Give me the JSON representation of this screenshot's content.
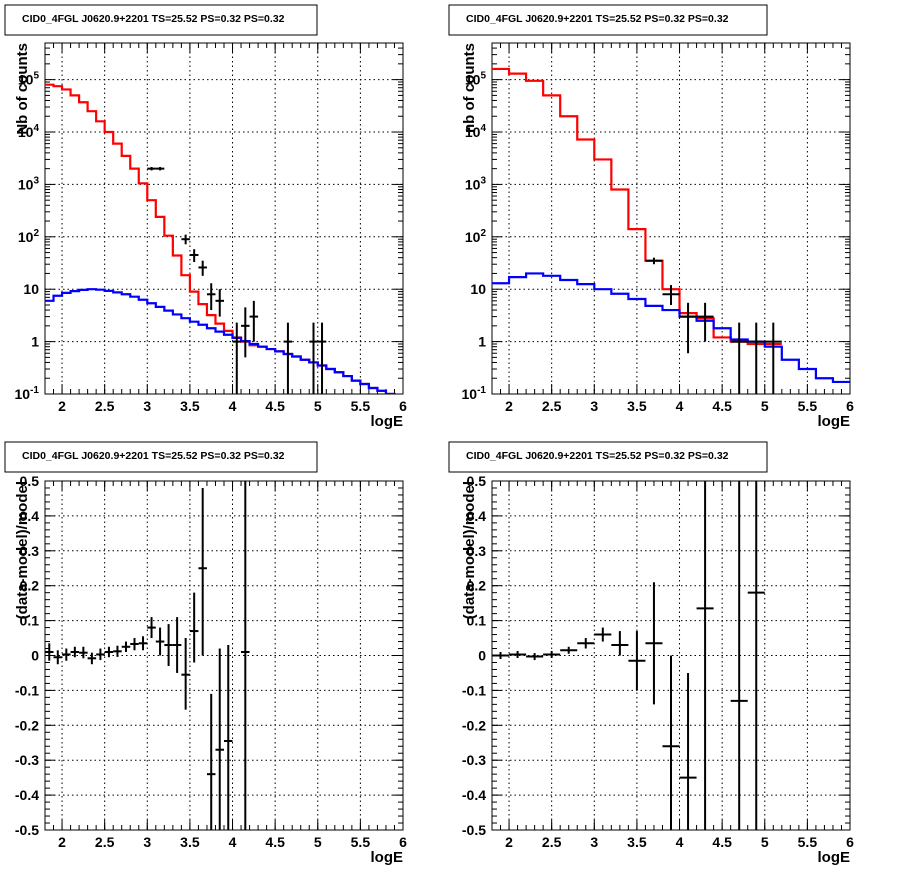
{
  "chart_data": [
    {
      "type": "line",
      "title": "CID0_4FGL J0620.9+2201 TS=25.52 PS=0.32 PS=0.32",
      "xlabel": "logE",
      "ylabel": "Nb of counts",
      "xlim": [
        1.8,
        6.0
      ],
      "ylim": [
        0.1,
        500000
      ],
      "yscale": "log",
      "grid": true,
      "xticks": [
        "2",
        "2.5",
        "3",
        "3.5",
        "4",
        "4.5",
        "5",
        "5.5",
        "6"
      ],
      "yticks": [
        "10^{-1}",
        "1",
        "10",
        "10^{2}",
        "10^{3}",
        "10^{4}",
        "10^{5}"
      ],
      "series": [
        {
          "color": "#ff0000",
          "style": "step",
          "edges": [
            1.8,
            1.9,
            2.0,
            2.1,
            2.2,
            2.3,
            2.4,
            2.5,
            2.6,
            2.7,
            2.8,
            2.9,
            3.0,
            3.1,
            3.2,
            3.3,
            3.4,
            3.5,
            3.6,
            3.7,
            3.8,
            3.9,
            4.0,
            4.1,
            4.2,
            4.3,
            4.4,
            4.5,
            4.6,
            4.7,
            4.8,
            4.9,
            5.0,
            5.1,
            5.2,
            5.3,
            5.4,
            5.5,
            5.6,
            5.7,
            5.8,
            5.9,
            6.0
          ],
          "values": [
            80000,
            75000,
            65000,
            50000,
            37000,
            25000,
            16000,
            10000,
            6000,
            3500,
            2000,
            1050,
            500,
            240,
            105,
            44,
            18.5,
            9,
            5.2,
            3.2,
            2.2,
            1.6,
            1.2,
            1.0,
            0.85,
            0.8,
            0.72,
            0.65,
            0.58,
            0.52,
            0.45,
            0.4,
            0.35,
            0.3,
            0.26,
            0.22,
            0.18,
            0.155,
            0.13,
            0.115,
            0.1,
            0.09
          ]
        },
        {
          "color": "#0000ff",
          "style": "step",
          "edges": [
            1.8,
            1.9,
            2.0,
            2.1,
            2.2,
            2.3,
            2.4,
            2.5,
            2.6,
            2.7,
            2.8,
            2.9,
            3.0,
            3.1,
            3.2,
            3.3,
            3.4,
            3.5,
            3.6,
            3.7,
            3.8,
            3.9,
            4.0,
            4.1,
            4.2,
            4.3,
            4.4,
            4.5,
            4.6,
            4.7,
            4.8,
            4.9,
            5.0,
            5.1,
            5.2,
            5.3,
            5.4,
            5.5,
            5.6,
            5.7,
            5.8,
            5.9,
            6.0
          ],
          "values": [
            6,
            7.5,
            8.5,
            9.2,
            9.7,
            10,
            9.8,
            9.3,
            8.7,
            8,
            7.2,
            6.3,
            5.4,
            4.6,
            3.9,
            3.3,
            2.8,
            2.4,
            2.1,
            1.8,
            1.55,
            1.35,
            1.18,
            1.02,
            0.9,
            0.8,
            0.72,
            0.65,
            0.58,
            0.52,
            0.45,
            0.4,
            0.35,
            0.3,
            0.26,
            0.22,
            0.18,
            0.155,
            0.13,
            0.115,
            0.1,
            0.09
          ]
        }
      ],
      "points": {
        "color": "#000000",
        "x": [
          3.05,
          3.15,
          3.45,
          3.55,
          3.65,
          3.75,
          3.85,
          4.05,
          4.15,
          4.25,
          4.65,
          4.95,
          5.05
        ],
        "xerr": [
          0.05,
          0.05,
          0.05,
          0.05,
          0.05,
          0.05,
          0.05,
          0.05,
          0.05,
          0.05,
          0.05,
          0.05,
          0.05
        ],
        "y": [
          2000,
          2000,
          90,
          45,
          26,
          8,
          6,
          1,
          2,
          3,
          1,
          1,
          1
        ],
        "ylow": [
          1850,
          1850,
          72,
          33,
          18,
          4,
          3,
          0.05,
          0.5,
          1,
          0.05,
          0.05,
          0.05
        ],
        "yhigh": [
          2150,
          2150,
          110,
          58,
          35,
          13,
          10,
          2.3,
          4.5,
          6,
          2.3,
          2.3,
          2.3
        ]
      }
    },
    {
      "type": "line",
      "title": "CID0_4FGL J0620.9+2201 TS=25.52 PS=0.32 PS=0.32",
      "xlabel": "logE",
      "ylabel": "nb of counts",
      "xlim": [
        1.8,
        6.0
      ],
      "ylim": [
        0.1,
        500000
      ],
      "yscale": "log",
      "grid": true,
      "xticks": [
        "2",
        "2.5",
        "3",
        "3.5",
        "4",
        "4.5",
        "5",
        "5.5",
        "6"
      ],
      "yticks": [
        "10^{-1}",
        "1",
        "10",
        "10^{2}",
        "10^{3}",
        "10^{4}",
        "10^{5}"
      ],
      "series": [
        {
          "color": "#ff0000",
          "style": "step",
          "edges": [
            1.8,
            2.0,
            2.2,
            2.4,
            2.6,
            2.8,
            3.0,
            3.2,
            3.4,
            3.6,
            3.8,
            4.0,
            4.2,
            4.4,
            4.6,
            4.8,
            5.0,
            5.2
          ],
          "values": [
            160000,
            130000,
            95000,
            50000,
            20000,
            7200,
            3000,
            800,
            140,
            35,
            10,
            3.5,
            2.8,
            1.2,
            1.0,
            0.9,
            0.9
          ]
        },
        {
          "color": "#0000ff",
          "style": "step",
          "edges": [
            1.8,
            2.0,
            2.2,
            2.4,
            2.6,
            2.8,
            3.0,
            3.2,
            3.4,
            3.6,
            3.8,
            4.0,
            4.2,
            4.4,
            4.6,
            4.8,
            5.0,
            5.2,
            5.4,
            5.6,
            5.8,
            6.0
          ],
          "values": [
            13,
            17,
            20,
            18,
            15,
            12.5,
            10,
            8.2,
            6.5,
            4.8,
            4,
            3,
            2.5,
            1.8,
            1.1,
            1.0,
            0.8,
            0.45,
            0.3,
            0.2,
            0.17
          ]
        }
      ],
      "points": {
        "color": "#000000",
        "x": [
          3.7,
          3.9,
          4.1,
          4.3,
          4.7,
          4.9,
          5.1
        ],
        "xerr": [
          0.1,
          0.1,
          0.1,
          0.1,
          0.1,
          0.1,
          0.1
        ],
        "y": [
          35,
          8,
          3,
          3,
          1,
          1,
          1
        ],
        "ylow": [
          30,
          5,
          0.6,
          1,
          0.05,
          0.05,
          0.05
        ],
        "yhigh": [
          40,
          12,
          5.5,
          5.5,
          2.3,
          2.3,
          2.3
        ]
      }
    },
    {
      "type": "scatter",
      "title": "CID0_4FGL J0620.9+2201 TS=25.52 PS=0.32 PS=0.32",
      "xlabel": "logE",
      "ylabel": "(data-model)/model",
      "xlim": [
        1.8,
        6.0
      ],
      "ylim": [
        -0.5,
        0.5
      ],
      "grid": true,
      "xticks": [
        "2",
        "2.5",
        "3",
        "3.5",
        "4",
        "4.5",
        "5",
        "5.5",
        "6"
      ],
      "yticks": [
        "-0.5",
        "-0.4",
        "-0.3",
        "-0.2",
        "-0.1",
        "0",
        "0.1",
        "0.2",
        "0.3",
        "0.4",
        "0.5"
      ],
      "points": {
        "color": "#000000",
        "x": [
          1.85,
          1.95,
          2.05,
          2.15,
          2.25,
          2.35,
          2.45,
          2.55,
          2.65,
          2.75,
          2.85,
          2.95,
          3.05,
          3.15,
          3.25,
          3.35,
          3.45,
          3.55,
          3.65,
          3.75,
          3.85,
          3.95,
          4.15
        ],
        "xerr": [
          0.05,
          0.05,
          0.05,
          0.05,
          0.05,
          0.05,
          0.05,
          0.05,
          0.05,
          0.05,
          0.05,
          0.05,
          0.05,
          0.05,
          0.05,
          0.05,
          0.05,
          0.05,
          0.05,
          0.05,
          0.05,
          0.05,
          0.05
        ],
        "y": [
          0.01,
          -0.005,
          0.003,
          0.01,
          0.008,
          -0.008,
          0.003,
          0.01,
          0.012,
          0.025,
          0.033,
          0.035,
          0.08,
          0.04,
          0.03,
          0.03,
          -0.055,
          0.07,
          0.25,
          -0.34,
          -0.27,
          -0.245,
          0.01
        ],
        "ylow": [
          -0.015,
          -0.025,
          -0.015,
          -0.005,
          -0.008,
          -0.025,
          -0.013,
          -0.005,
          -0.004,
          0.01,
          0.015,
          0.015,
          0.05,
          0.0,
          -0.03,
          -0.05,
          -0.155,
          -0.02,
          0.0,
          -0.55,
          -0.55,
          -0.5,
          -0.5
        ],
        "yhigh": [
          0.035,
          0.015,
          0.02,
          0.025,
          0.025,
          0.008,
          0.02,
          0.025,
          0.028,
          0.04,
          0.05,
          0.055,
          0.11,
          0.08,
          0.09,
          0.11,
          0.05,
          0.18,
          0.48,
          -0.11,
          0.02,
          0.03,
          0.5
        ]
      }
    },
    {
      "type": "scatter",
      "title": "CID0_4FGL J0620.9+2201 TS=25.52 PS=0.32 PS=0.32",
      "xlabel": "logE",
      "ylabel": "(data-model)/model",
      "xlim": [
        1.8,
        6.0
      ],
      "ylim": [
        -0.5,
        0.5
      ],
      "grid": true,
      "xticks": [
        "2",
        "2.5",
        "3",
        "3.5",
        "4",
        "4.5",
        "5",
        "5.5",
        "6"
      ],
      "yticks": [
        "-0.5",
        "-0.4",
        "-0.3",
        "-0.2",
        "-0.1",
        "0",
        "0.1",
        "0.2",
        "0.3",
        "0.4",
        "0.5"
      ],
      "points": {
        "color": "#000000",
        "x": [
          1.9,
          2.1,
          2.3,
          2.5,
          2.7,
          2.9,
          3.1,
          3.3,
          3.5,
          3.7,
          3.9,
          4.1,
          4.3,
          4.7,
          4.9
        ],
        "xerr": [
          0.1,
          0.1,
          0.1,
          0.1,
          0.1,
          0.1,
          0.1,
          0.1,
          0.1,
          0.1,
          0.1,
          0.1,
          0.1,
          0.1,
          0.1
        ],
        "y": [
          0.0,
          0.003,
          -0.003,
          0.003,
          0.015,
          0.035,
          0.06,
          0.03,
          -0.015,
          0.035,
          -0.26,
          -0.35,
          0.135,
          -0.13,
          0.18
        ],
        "ylow": [
          -0.01,
          -0.007,
          -0.013,
          -0.007,
          0.005,
          0.02,
          0.04,
          0.0,
          -0.1,
          -0.14,
          -0.5,
          -0.5,
          -0.5,
          -0.5,
          -0.5
        ],
        "yhigh": [
          0.01,
          0.013,
          0.007,
          0.013,
          0.025,
          0.05,
          0.08,
          0.07,
          0.07,
          0.21,
          -0.0,
          -0.05,
          0.5,
          0.5,
          0.5
        ]
      }
    }
  ]
}
